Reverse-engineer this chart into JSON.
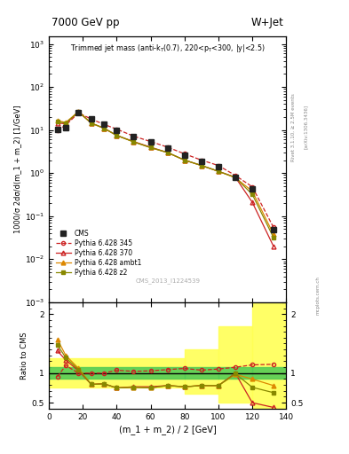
{
  "title_left": "7000 GeV pp",
  "title_right": "W+Jet",
  "ylabel_main": "1000/σ 2dσ/d(m_1 + m_2) [1/GeV]",
  "ylabel_ratio": "Ratio to CMS",
  "xlabel": "(m_1 + m_2) / 2 [GeV]",
  "watermark": "CMS_2013_I1224539",
  "arxiv": "[arXiv:1306.3436]",
  "rivet": "Rivet 3.1.10, ≥ 2.5M events",
  "mcplots": "mcplots.cern.ch",
  "cms_x": [
    5,
    10,
    17.5,
    25,
    32.5,
    40,
    50,
    60,
    70,
    80,
    90,
    100,
    110,
    120,
    132.5
  ],
  "cms_y": [
    10.5,
    11.5,
    25.0,
    18.0,
    13.5,
    10.0,
    7.0,
    5.2,
    3.8,
    2.6,
    1.9,
    1.4,
    0.8,
    0.42,
    0.048
  ],
  "py345_x": [
    5,
    10,
    17.5,
    25,
    32.5,
    40,
    50,
    60,
    70,
    80,
    90,
    100,
    110,
    120,
    132.5
  ],
  "py345_y": [
    9.8,
    13.0,
    25.0,
    18.0,
    13.5,
    10.5,
    7.2,
    5.4,
    4.0,
    2.8,
    2.0,
    1.5,
    0.88,
    0.48,
    0.055
  ],
  "py370_x": [
    5,
    10,
    17.5,
    25,
    32.5,
    40,
    50,
    60,
    70,
    80,
    90,
    100,
    110,
    120,
    132.5
  ],
  "py370_y": [
    14.5,
    14.0,
    26.0,
    14.5,
    11.0,
    7.5,
    5.4,
    4.0,
    3.0,
    2.0,
    1.5,
    1.1,
    0.8,
    0.21,
    0.02
  ],
  "pyambt1_x": [
    5,
    10,
    17.5,
    25,
    32.5,
    40,
    50,
    60,
    70,
    80,
    90,
    100,
    110,
    120,
    132.5
  ],
  "pyambt1_y": [
    16.5,
    15.0,
    27.0,
    14.5,
    11.0,
    7.5,
    5.3,
    3.9,
    3.0,
    2.0,
    1.5,
    1.1,
    0.78,
    0.38,
    0.038
  ],
  "pyz2_x": [
    5,
    10,
    17.5,
    25,
    32.5,
    40,
    50,
    60,
    70,
    80,
    90,
    100,
    110,
    120,
    132.5
  ],
  "pyz2_y": [
    15.5,
    14.5,
    26.5,
    14.5,
    11.0,
    7.5,
    5.3,
    3.9,
    3.0,
    2.0,
    1.5,
    1.1,
    0.79,
    0.32,
    0.032
  ],
  "ratio_x": [
    5,
    10,
    17.5,
    25,
    32.5,
    40,
    50,
    60,
    70,
    80,
    90,
    100,
    110,
    120,
    132.5
  ],
  "ratio_py345": [
    0.94,
    1.13,
    1.0,
    1.0,
    1.0,
    1.05,
    1.03,
    1.04,
    1.06,
    1.08,
    1.05,
    1.07,
    1.1,
    1.14,
    1.15
  ],
  "ratio_py370": [
    1.38,
    1.22,
    1.04,
    0.81,
    0.82,
    0.75,
    0.77,
    0.77,
    0.79,
    0.77,
    0.79,
    0.79,
    1.0,
    0.5,
    0.42
  ],
  "ratio_pyambt1": [
    1.57,
    1.3,
    1.08,
    0.81,
    0.82,
    0.75,
    0.76,
    0.75,
    0.79,
    0.77,
    0.79,
    0.79,
    0.98,
    0.9,
    0.79
  ],
  "ratio_pyz2": [
    1.48,
    1.26,
    1.06,
    0.81,
    0.82,
    0.75,
    0.76,
    0.75,
    0.79,
    0.77,
    0.79,
    0.79,
    0.99,
    0.76,
    0.67
  ],
  "color_cms": "#222222",
  "color_py345": "#cc2222",
  "color_py370": "#cc2222",
  "color_pyambt1": "#dd8800",
  "color_pyz2": "#888800",
  "xlim": [
    0,
    140
  ],
  "ylim_main": [
    0.001,
    1500
  ],
  "ylim_ratio": [
    0.4,
    2.2
  ]
}
